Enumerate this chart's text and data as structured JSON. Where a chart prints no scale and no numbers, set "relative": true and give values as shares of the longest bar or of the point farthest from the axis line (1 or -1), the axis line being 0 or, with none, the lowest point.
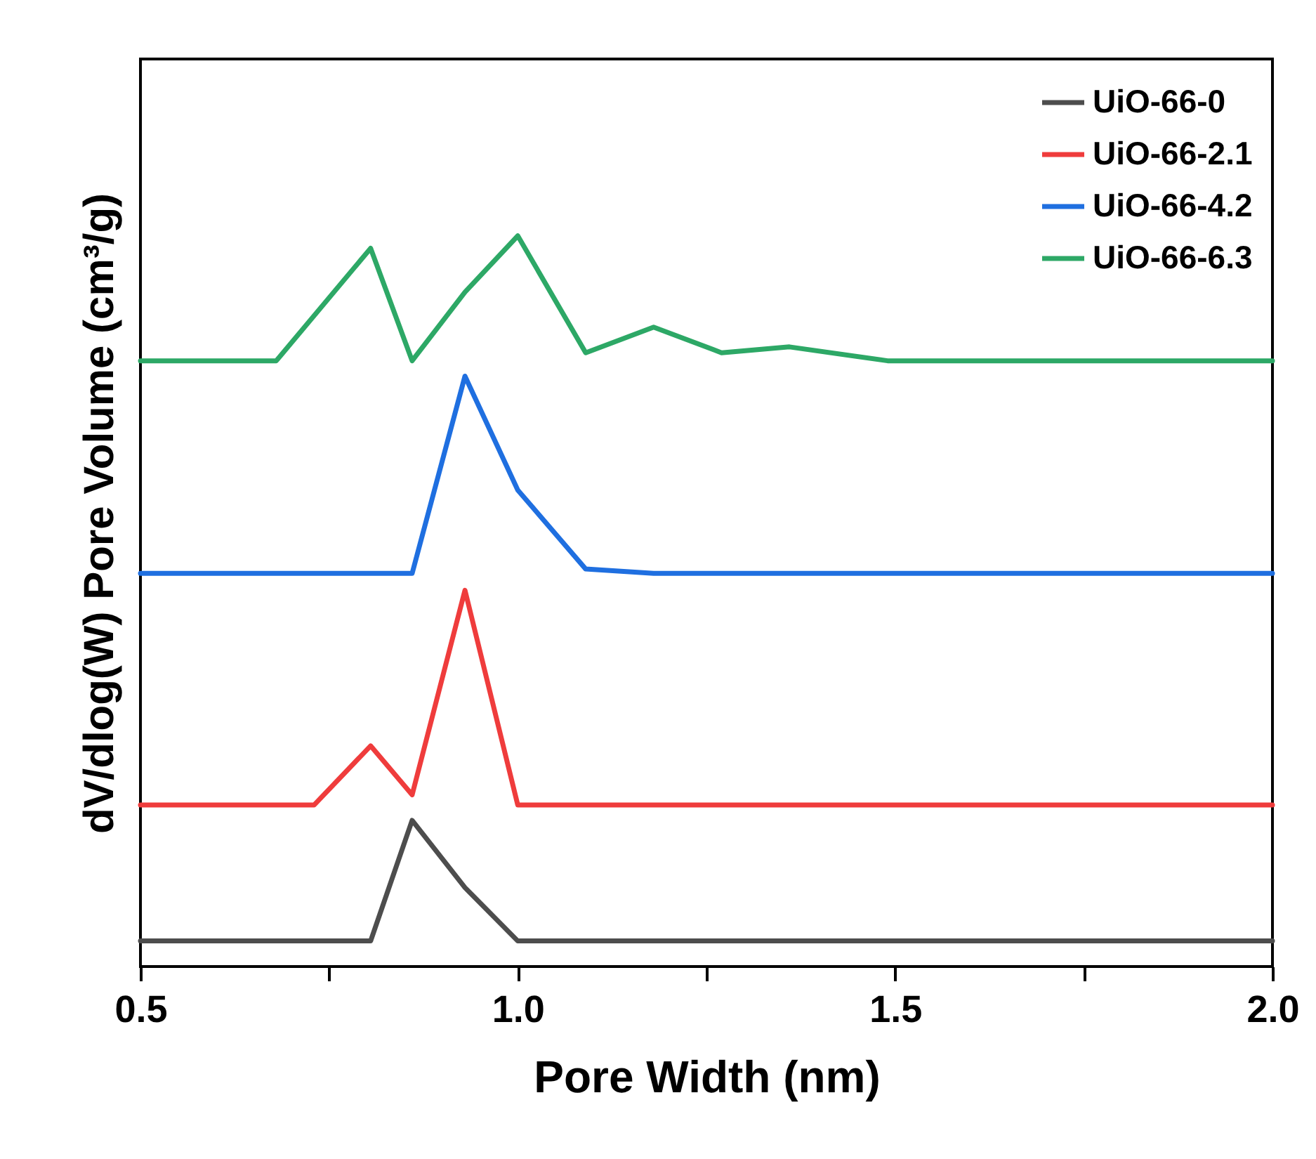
{
  "chart_data": {
    "type": "line",
    "xlabel": "Pore Width (nm)",
    "ylabel": "dV/dlog(W) Pore Volume (cm³/g)",
    "relative": true,
    "xlim": [
      0.5,
      2.0
    ],
    "xticks": [
      {
        "value": 0.5,
        "label": "0.5"
      },
      {
        "value": 0.75,
        "label": null
      },
      {
        "value": 1.0,
        "label": "1.0"
      },
      {
        "value": 1.25,
        "label": null
      },
      {
        "value": 1.5,
        "label": "1.5"
      },
      {
        "value": 1.75,
        "label": null
      },
      {
        "value": 2.0,
        "label": "2.0"
      }
    ],
    "grid": false,
    "legend": "top right",
    "series": [
      {
        "name": "UiO-66-0",
        "color": "#4d4d4d",
        "x": [
          0.5,
          0.805,
          0.86,
          0.93,
          1.0,
          2.0
        ],
        "values": [
          0.035,
          0.035,
          0.2,
          0.108,
          0.035,
          0.035
        ]
      },
      {
        "name": "UiO-66-2.1",
        "color": "#ef3c3c",
        "x": [
          0.5,
          0.73,
          0.805,
          0.86,
          0.93,
          1.0,
          2.0
        ],
        "values": [
          0.221,
          0.221,
          0.302,
          0.235,
          0.515,
          0.221,
          0.221
        ]
      },
      {
        "name": "UiO-66-4.2",
        "color": "#1f6fe0",
        "x": [
          0.5,
          0.86,
          0.93,
          1.0,
          1.09,
          1.18,
          2.0
        ],
        "values": [
          0.538,
          0.538,
          0.808,
          0.652,
          0.544,
          0.538,
          0.538
        ]
      },
      {
        "name": "UiO-66-6.3",
        "color": "#2da866",
        "x": [
          0.5,
          0.68,
          0.805,
          0.86,
          0.93,
          1.0,
          1.09,
          1.18,
          1.27,
          1.36,
          1.49,
          2.0
        ],
        "values": [
          0.829,
          0.829,
          0.983,
          0.829,
          0.923,
          1.0,
          0.84,
          0.875,
          0.84,
          0.848,
          0.829,
          0.829
        ]
      }
    ]
  }
}
